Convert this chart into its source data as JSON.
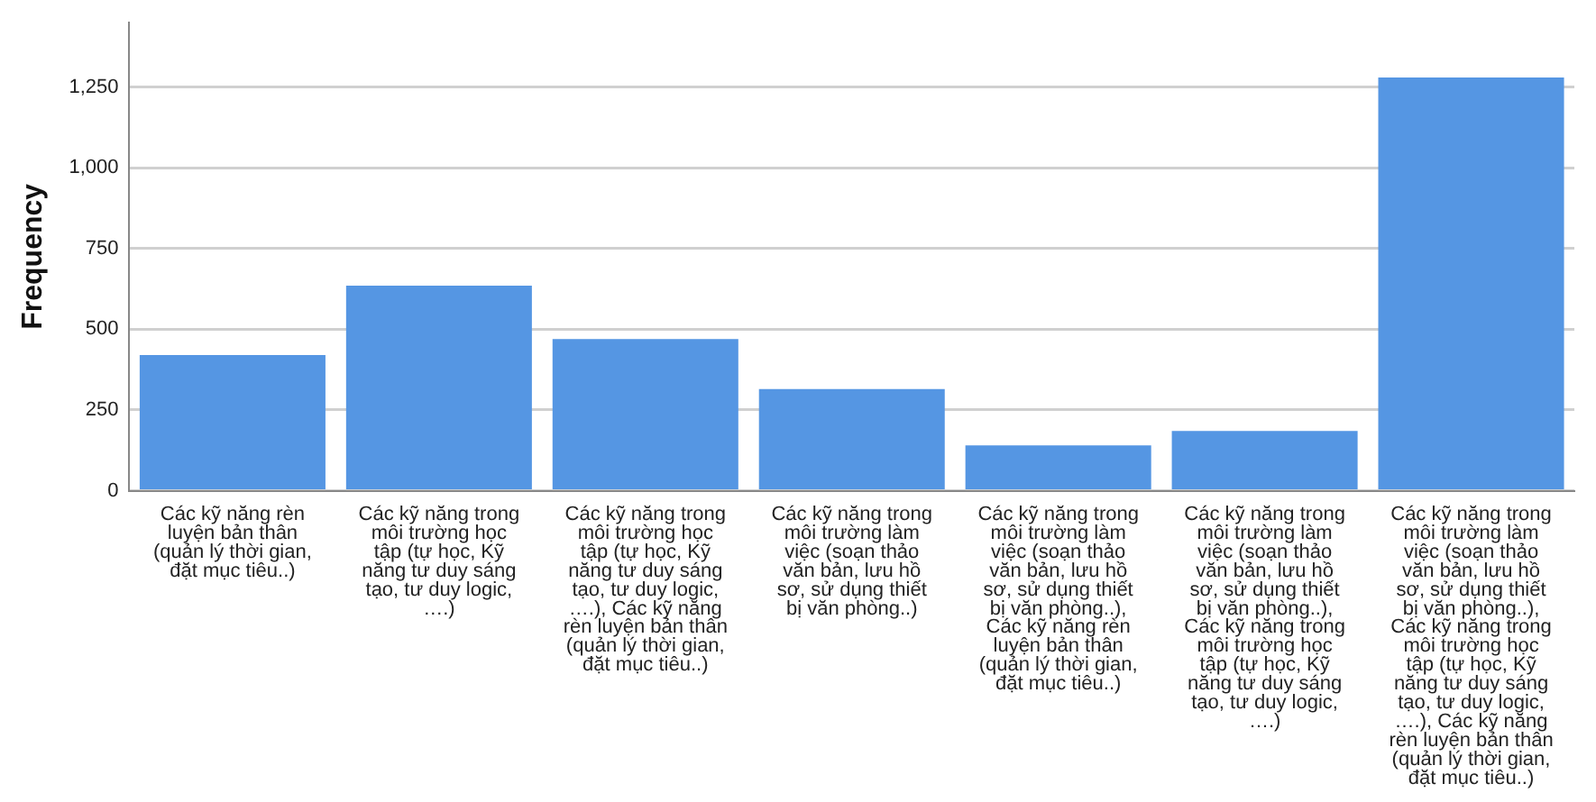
{
  "chart_data": {
    "type": "bar",
    "ylabel": "Frequency",
    "categories": [
      "Các kỹ năng rèn luyện bản thân (quản lý thời gian, đặt mục tiêu..)",
      "Các kỹ năng trong môi trường học tập (tự học, Kỹ năng tư duy sáng tạo, tư duy logic, ….)",
      "Các kỹ năng trong môi trường học tập (tự học, Kỹ năng tư duy sáng tạo, tư duy logic, ….), Các kỹ năng rèn luyện bản thân (quản lý thời gian, đặt mục tiêu..)",
      "Các kỹ năng trong môi trường làm việc (soạn thảo văn bản, lưu hồ sơ, sử dụng thiết bị văn phòng..)",
      "Các kỹ năng trong môi trường làm việc (soạn thảo văn bản, lưu hồ sơ, sử dụng thiết bị văn phòng..), Các kỹ năng rèn luyện bản thân (quản lý thời gian, đặt mục tiêu..)",
      "Các kỹ năng trong môi trường làm việc (soạn thảo văn bản, lưu hồ sơ, sử dụng thiết bị văn phòng..), Các kỹ năng trong môi trường học tập (tự học, Kỹ năng tư duy sáng tạo, tư duy logic, ….)",
      "Các kỹ năng trong môi trường làm việc (soạn thảo văn bản, lưu hồ sơ, sử dụng thiết bị văn phòng..), Các kỹ năng trong môi trường học tập (tự học, Kỹ năng tư duy sáng tạo, tư duy logic, ….), Các kỹ năng rèn luyện bản thân (quản lý thời gian, đặt mục tiêu..)"
    ],
    "values": [
      420,
      635,
      470,
      315,
      140,
      185,
      1280
    ],
    "color": "#5596e3",
    "ylim": [
      0,
      1450
    ],
    "yticks": [
      0,
      250,
      500,
      750,
      {
        "value": 1000,
        "label": "1,000"
      },
      {
        "value": 1250,
        "label": "1,250"
      }
    ],
    "grid": "y"
  }
}
